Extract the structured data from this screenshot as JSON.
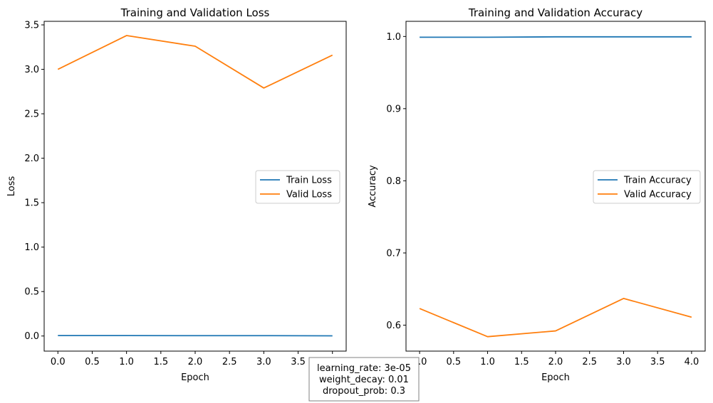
{
  "chart_data": [
    {
      "type": "line",
      "title": "Training and Validation Loss",
      "xlabel": "Epoch",
      "ylabel": "Loss",
      "x": [
        0,
        1,
        2,
        3,
        4
      ],
      "xlim": [
        -0.2,
        4.2
      ],
      "ylim": [
        -0.17,
        3.54
      ],
      "xticks": [
        0.0,
        0.5,
        1.0,
        1.5,
        2.0,
        2.5,
        3.0,
        3.5,
        4.0
      ],
      "yticks": [
        0.0,
        0.5,
        1.0,
        1.5,
        2.0,
        2.5,
        3.0,
        3.5
      ],
      "legend_position": "center-right",
      "series": [
        {
          "name": "Train Loss",
          "color": "#1f77b4",
          "values": [
            0.005,
            0.005,
            0.004,
            0.004,
            0.002
          ]
        },
        {
          "name": "Valid Loss",
          "color": "#ff7f0e",
          "values": [
            3.0,
            3.38,
            3.26,
            2.79,
            3.16
          ]
        }
      ]
    },
    {
      "type": "line",
      "title": "Training and Validation Accuracy",
      "xlabel": "Epoch",
      "ylabel": "Accuracy",
      "x": [
        0,
        1,
        2,
        3,
        4
      ],
      "xlim": [
        -0.2,
        4.2
      ],
      "ylim": [
        0.564,
        1.021
      ],
      "xticks": [
        0.0,
        0.5,
        1.0,
        1.5,
        2.0,
        2.5,
        3.0,
        3.5,
        4.0
      ],
      "yticks": [
        0.6,
        0.7,
        0.8,
        0.9,
        1.0
      ],
      "legend_position": "center-right",
      "series": [
        {
          "name": "Train Accuracy",
          "color": "#1f77b4",
          "values": [
            0.999,
            0.999,
            0.9995,
            0.9995,
            0.9995
          ]
        },
        {
          "name": "Valid Accuracy",
          "color": "#ff7f0e",
          "values": [
            0.623,
            0.584,
            0.592,
            0.637,
            0.611
          ]
        }
      ]
    }
  ],
  "hyperparams": {
    "line1": "learning_rate: 3e-05",
    "line2": "weight_decay: 0.01",
    "line3": "dropout_prob: 0.3"
  }
}
